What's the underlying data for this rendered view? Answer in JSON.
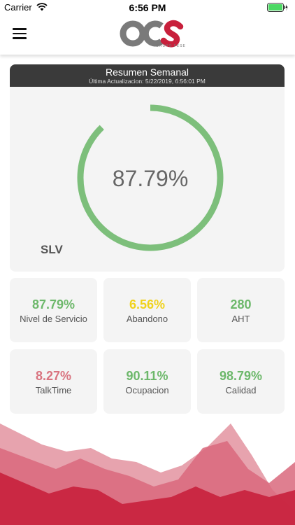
{
  "status_bar": {
    "carrier": "Carrier",
    "time": "6:56 PM"
  },
  "header": {
    "logo_text": "OCS",
    "logo_subtext": "GRUPO FESE"
  },
  "summary": {
    "title": "Resumen Semanal",
    "updated": "Última Actualizacion: 5/22/2019, 6:56:01 PM",
    "gauge_value": "87.79%",
    "gauge_fraction": 0.8779,
    "gauge_label": "SLV",
    "gauge_color": "#7dbf7b"
  },
  "metrics": [
    {
      "value": "87.79%",
      "label": "Nivel de Servicio",
      "color": "#6db86b"
    },
    {
      "value": "6.56%",
      "label": "Abandono",
      "color": "#f0d21c"
    },
    {
      "value": "280",
      "label": "AHT",
      "color": "#6db86b"
    },
    {
      "value": "8.27%",
      "label": "TalkTime",
      "color": "#d9737f"
    },
    {
      "value": "90.11%",
      "label": "Ocupacion",
      "color": "#6db86b"
    },
    {
      "value": "98.79%",
      "label": "Calidad",
      "color": "#6db86b"
    }
  ],
  "colors": {
    "brand_red": "#c8203c",
    "brand_gray": "#7a7a7a"
  }
}
